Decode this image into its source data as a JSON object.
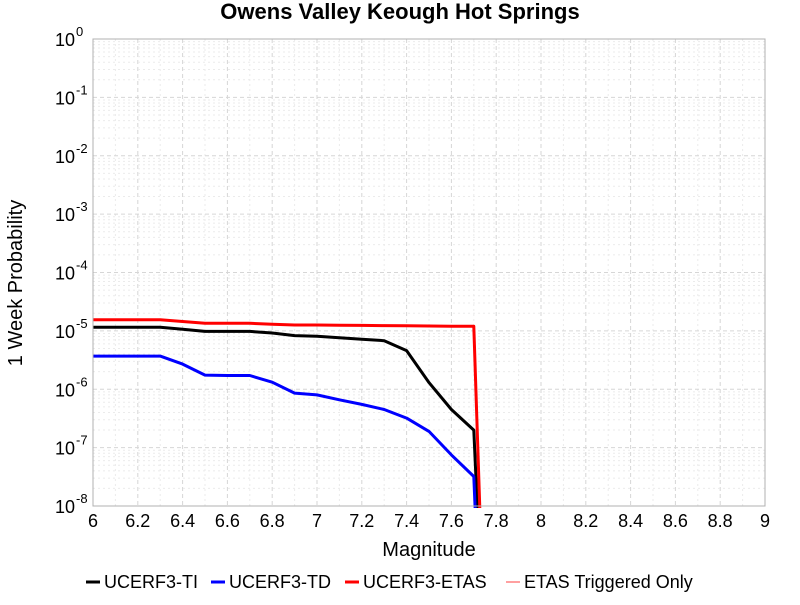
{
  "chart_data": {
    "type": "line",
    "title": "Owens Valley Keough Hot Springs",
    "xlabel": "Magnitude",
    "ylabel": "1 Week Probability",
    "xlim": [
      6,
      9
    ],
    "ylim": [
      1e-08,
      1
    ],
    "y_scale": "log",
    "grid": true,
    "legend_position": "bottom",
    "x_ticks": [
      "6",
      "6.2",
      "6.4",
      "6.6",
      "6.8",
      "7",
      "7.2",
      "7.4",
      "7.6",
      "7.8",
      "8",
      "8.2",
      "8.4",
      "8.6",
      "8.8",
      "9"
    ],
    "y_ticks": [
      {
        "base": "10",
        "exp": "0"
      },
      {
        "base": "10",
        "exp": "-1"
      },
      {
        "base": "10",
        "exp": "-2"
      },
      {
        "base": "10",
        "exp": "-3"
      },
      {
        "base": "10",
        "exp": "-4"
      },
      {
        "base": "10",
        "exp": "-5"
      },
      {
        "base": "10",
        "exp": "-6"
      },
      {
        "base": "10",
        "exp": "-7"
      },
      {
        "base": "10",
        "exp": "-8"
      }
    ],
    "series": [
      {
        "name": "UCERF3-TI",
        "color": "#000000",
        "x": [
          6.0,
          6.1,
          6.2,
          6.3,
          6.4,
          6.5,
          6.6,
          6.7,
          6.8,
          6.9,
          7.0,
          7.1,
          7.2,
          7.3,
          7.4,
          7.5,
          7.6,
          7.7,
          7.72
        ],
        "y": [
          1.15e-05,
          1.15e-05,
          1.15e-05,
          1.15e-05,
          1.07e-05,
          9.8e-06,
          9.8e-06,
          9.8e-06,
          9.2e-06,
          8.3e-06,
          8.1e-06,
          7.6e-06,
          7.2e-06,
          6.8e-06,
          4.6e-06,
          1.3e-06,
          4.5e-07,
          2e-07,
          3e-09
        ]
      },
      {
        "name": "UCERF3-TD",
        "color": "#0000ff",
        "x": [
          6.0,
          6.1,
          6.2,
          6.3,
          6.4,
          6.5,
          6.6,
          6.7,
          6.8,
          6.9,
          7.0,
          7.1,
          7.2,
          7.3,
          7.4,
          7.5,
          7.6,
          7.7,
          7.71
        ],
        "y": [
          3.7e-06,
          3.7e-06,
          3.7e-06,
          3.7e-06,
          2.7e-06,
          1.75e-06,
          1.72e-06,
          1.72e-06,
          1.32e-06,
          8.6e-07,
          8e-07,
          6.6e-07,
          5.5e-07,
          4.5e-07,
          3.2e-07,
          1.9e-07,
          7.5e-08,
          3.2e-08,
          3e-09
        ]
      },
      {
        "name": "UCERF3-ETAS",
        "color": "#ff0000",
        "x": [
          6.0,
          6.1,
          6.2,
          6.3,
          6.4,
          6.5,
          6.6,
          6.7,
          6.8,
          6.9,
          7.0,
          7.1,
          7.2,
          7.3,
          7.4,
          7.5,
          7.6,
          7.7,
          7.73
        ],
        "y": [
          1.55e-05,
          1.55e-05,
          1.55e-05,
          1.55e-05,
          1.45e-05,
          1.35e-05,
          1.35e-05,
          1.35e-05,
          1.3e-05,
          1.26e-05,
          1.26e-05,
          1.25e-05,
          1.24e-05,
          1.23e-05,
          1.22e-05,
          1.21e-05,
          1.2e-05,
          1.2e-05,
          3e-09
        ]
      },
      {
        "name": "ETAS Triggered Only",
        "color": "#ff8080",
        "x": [],
        "y": []
      }
    ]
  }
}
